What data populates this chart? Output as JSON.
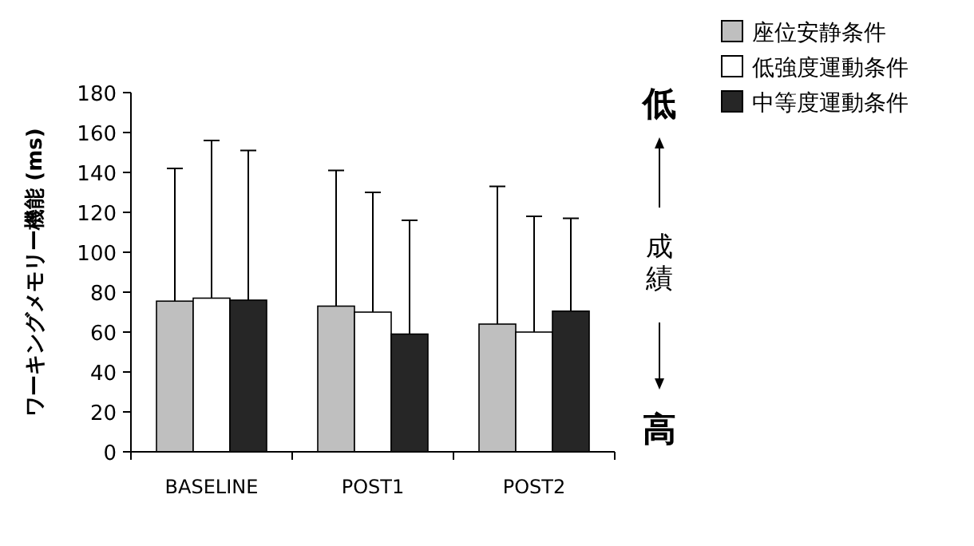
{
  "chart_data": {
    "type": "bar",
    "categories": [
      "BASELINE",
      "POST1",
      "POST2"
    ],
    "ylabel": "ワーキングメモリー機能 (ms)",
    "series": [
      {
        "name": "座位安静条件",
        "color": "#bfbfbf",
        "values": [
          75.5,
          73,
          64
        ],
        "errors": [
          [
            75.5,
            142
          ],
          [
            73,
            141
          ],
          [
            64,
            133
          ]
        ]
      },
      {
        "name": "低強度運動条件",
        "color": "#ffffff",
        "values": [
          77,
          70,
          60
        ],
        "errors": [
          [
            77,
            156
          ],
          [
            70,
            130
          ],
          [
            60,
            118
          ]
        ]
      },
      {
        "name": "中等度運動条件",
        "color": "#262626",
        "values": [
          76,
          59,
          70.5
        ],
        "errors": [
          [
            76,
            151
          ],
          [
            59,
            116
          ],
          [
            70.5,
            117
          ]
        ]
      }
    ],
    "ylim": [
      0,
      180
    ],
    "yticks": [
      0,
      20,
      40,
      60,
      80,
      100,
      120,
      140,
      160,
      180
    ],
    "legend": "top right",
    "annotations": [
      "低",
      "成績",
      "高"
    ]
  }
}
